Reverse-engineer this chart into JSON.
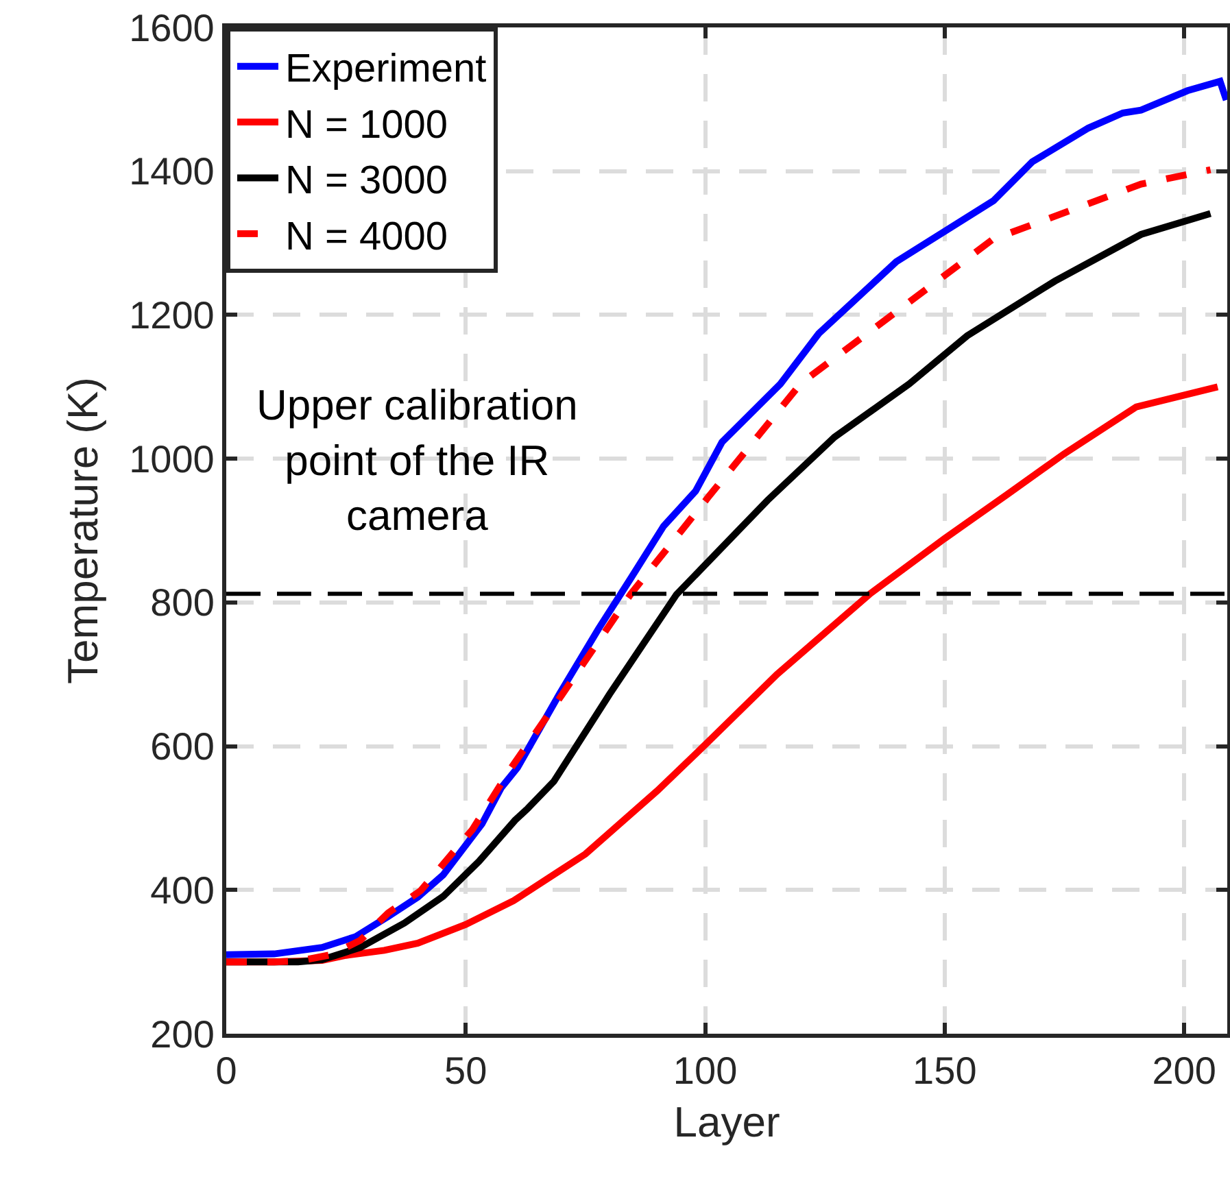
{
  "chart_data": {
    "type": "line",
    "xlabel": "Layer",
    "ylabel": "Temperature (K)",
    "xlim": [
      0,
      209
    ],
    "xticks": [
      0,
      50,
      100,
      150,
      200
    ],
    "ylim": [
      200,
      1600
    ],
    "yticks": [
      200,
      400,
      600,
      800,
      1000,
      1200,
      1400,
      1600
    ],
    "grid": true,
    "legend": "top left",
    "marker": "none",
    "series": [
      {
        "name": "Experiment",
        "color": "#0000ff",
        "line_style": "solid",
        "x": [
          0,
          10,
          20,
          27,
          33.8,
          40,
          45.3,
          53.4,
          57.4,
          60.8,
          69.6,
          77.7,
          84.5,
          91.3,
          98,
          103.5,
          115.7,
          123.7,
          139.9,
          160.2,
          168.3,
          180,
          187.2,
          191,
          200.7,
          207.5,
          208.8
        ],
        "values": [
          310,
          311,
          320,
          335,
          363,
          390,
          421,
          492,
          542,
          570,
          673,
          763,
          834,
          906,
          955,
          1023,
          1104,
          1174,
          1274,
          1359,
          1413,
          1460,
          1481,
          1485,
          1512,
          1525,
          1499
        ]
      },
      {
        "name": "N = 1000",
        "color": "#ff0000",
        "line_style": "solid",
        "x": [
          0,
          10,
          20,
          25,
          33,
          40,
          50,
          60,
          75,
          90,
          100,
          115,
          134.4,
          150,
          163,
          175,
          190,
          207
        ],
        "values": [
          300,
          300,
          302,
          309,
          316,
          326,
          352,
          385,
          450,
          538,
          602,
          700,
          812,
          889,
          950,
          1007,
          1072,
          1100
        ]
      },
      {
        "name": "N = 3000",
        "color": "#000000",
        "line_style": "solid",
        "x": [
          0,
          10,
          15,
          20,
          28,
          37.2,
          45.3,
          52.8,
          60.3,
          62.9,
          68.4,
          80,
          94,
          113,
          127,
          142.6,
          154.7,
          173,
          191,
          205.5
        ],
        "values": [
          300,
          300,
          300,
          303,
          320,
          354,
          391,
          440,
          497,
          513,
          551,
          672,
          811,
          942,
          1030,
          1104,
          1171,
          1247,
          1312,
          1341
        ]
      },
      {
        "name": "N = 4000",
        "color": "#ff0000",
        "line_style": "dashed",
        "x": [
          0,
          10,
          15,
          22,
          28,
          33.8,
          40.6,
          51.4,
          59.5,
          68.3,
          84.5,
          100.7,
          120,
          133,
          160,
          191,
          205.5
        ],
        "values": [
          300,
          300,
          301,
          310,
          330,
          368,
          399,
          484,
          570,
          654,
          812,
          947,
          1105,
          1170,
          1305,
          1382,
          1402
        ]
      }
    ],
    "ref_lines": [
      {
        "axis": "y",
        "value": 812,
        "color": "#000000",
        "line_style": "dashed"
      }
    ],
    "annotations": [
      "Upper calibration\npoint of the IR\ncamera"
    ]
  }
}
